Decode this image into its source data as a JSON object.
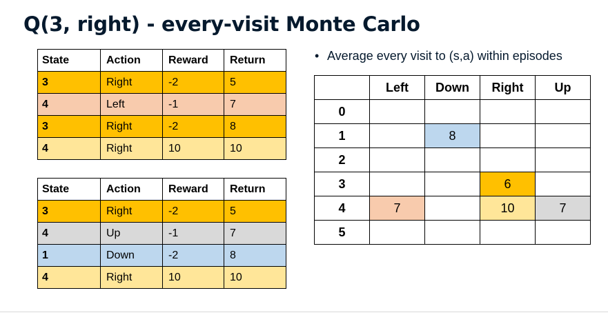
{
  "title": "Q(3, right) - every-visit Monte Carlo",
  "bullet": "Average every visit to (s,a) within episodes",
  "columns": [
    "State",
    "Action",
    "Reward",
    "Return"
  ],
  "episode1": [
    {
      "state": "3",
      "action": "Right",
      "reward": "-2",
      "return": "5",
      "color": "#ffc000"
    },
    {
      "state": "4",
      "action": "Left",
      "reward": "-1",
      "return": "7",
      "color": "#f8cbad"
    },
    {
      "state": "3",
      "action": "Right",
      "reward": "-2",
      "return": "8",
      "color": "#ffc000"
    },
    {
      "state": "4",
      "action": "Right",
      "reward": "10",
      "return": "10",
      "color": "#ffe699"
    }
  ],
  "episode2": [
    {
      "state": "3",
      "action": "Right",
      "reward": "-2",
      "return": "5",
      "color": "#ffc000"
    },
    {
      "state": "4",
      "action": "Up",
      "reward": "-1",
      "return": "7",
      "color": "#d9d9d9"
    },
    {
      "state": "1",
      "action": "Down",
      "reward": "-2",
      "return": "8",
      "color": "#bdd7ee"
    },
    {
      "state": "4",
      "action": "Right",
      "reward": "10",
      "return": "10",
      "color": "#ffe699"
    }
  ],
  "q_table": {
    "actions": [
      "Left",
      "Down",
      "Right",
      "Up"
    ],
    "states": [
      "0",
      "1",
      "2",
      "3",
      "4",
      "5"
    ],
    "values": {
      "s1_down": "8",
      "s3_right": "6",
      "s4_left": "7",
      "s4_right": "10",
      "s4_up": "7"
    }
  }
}
